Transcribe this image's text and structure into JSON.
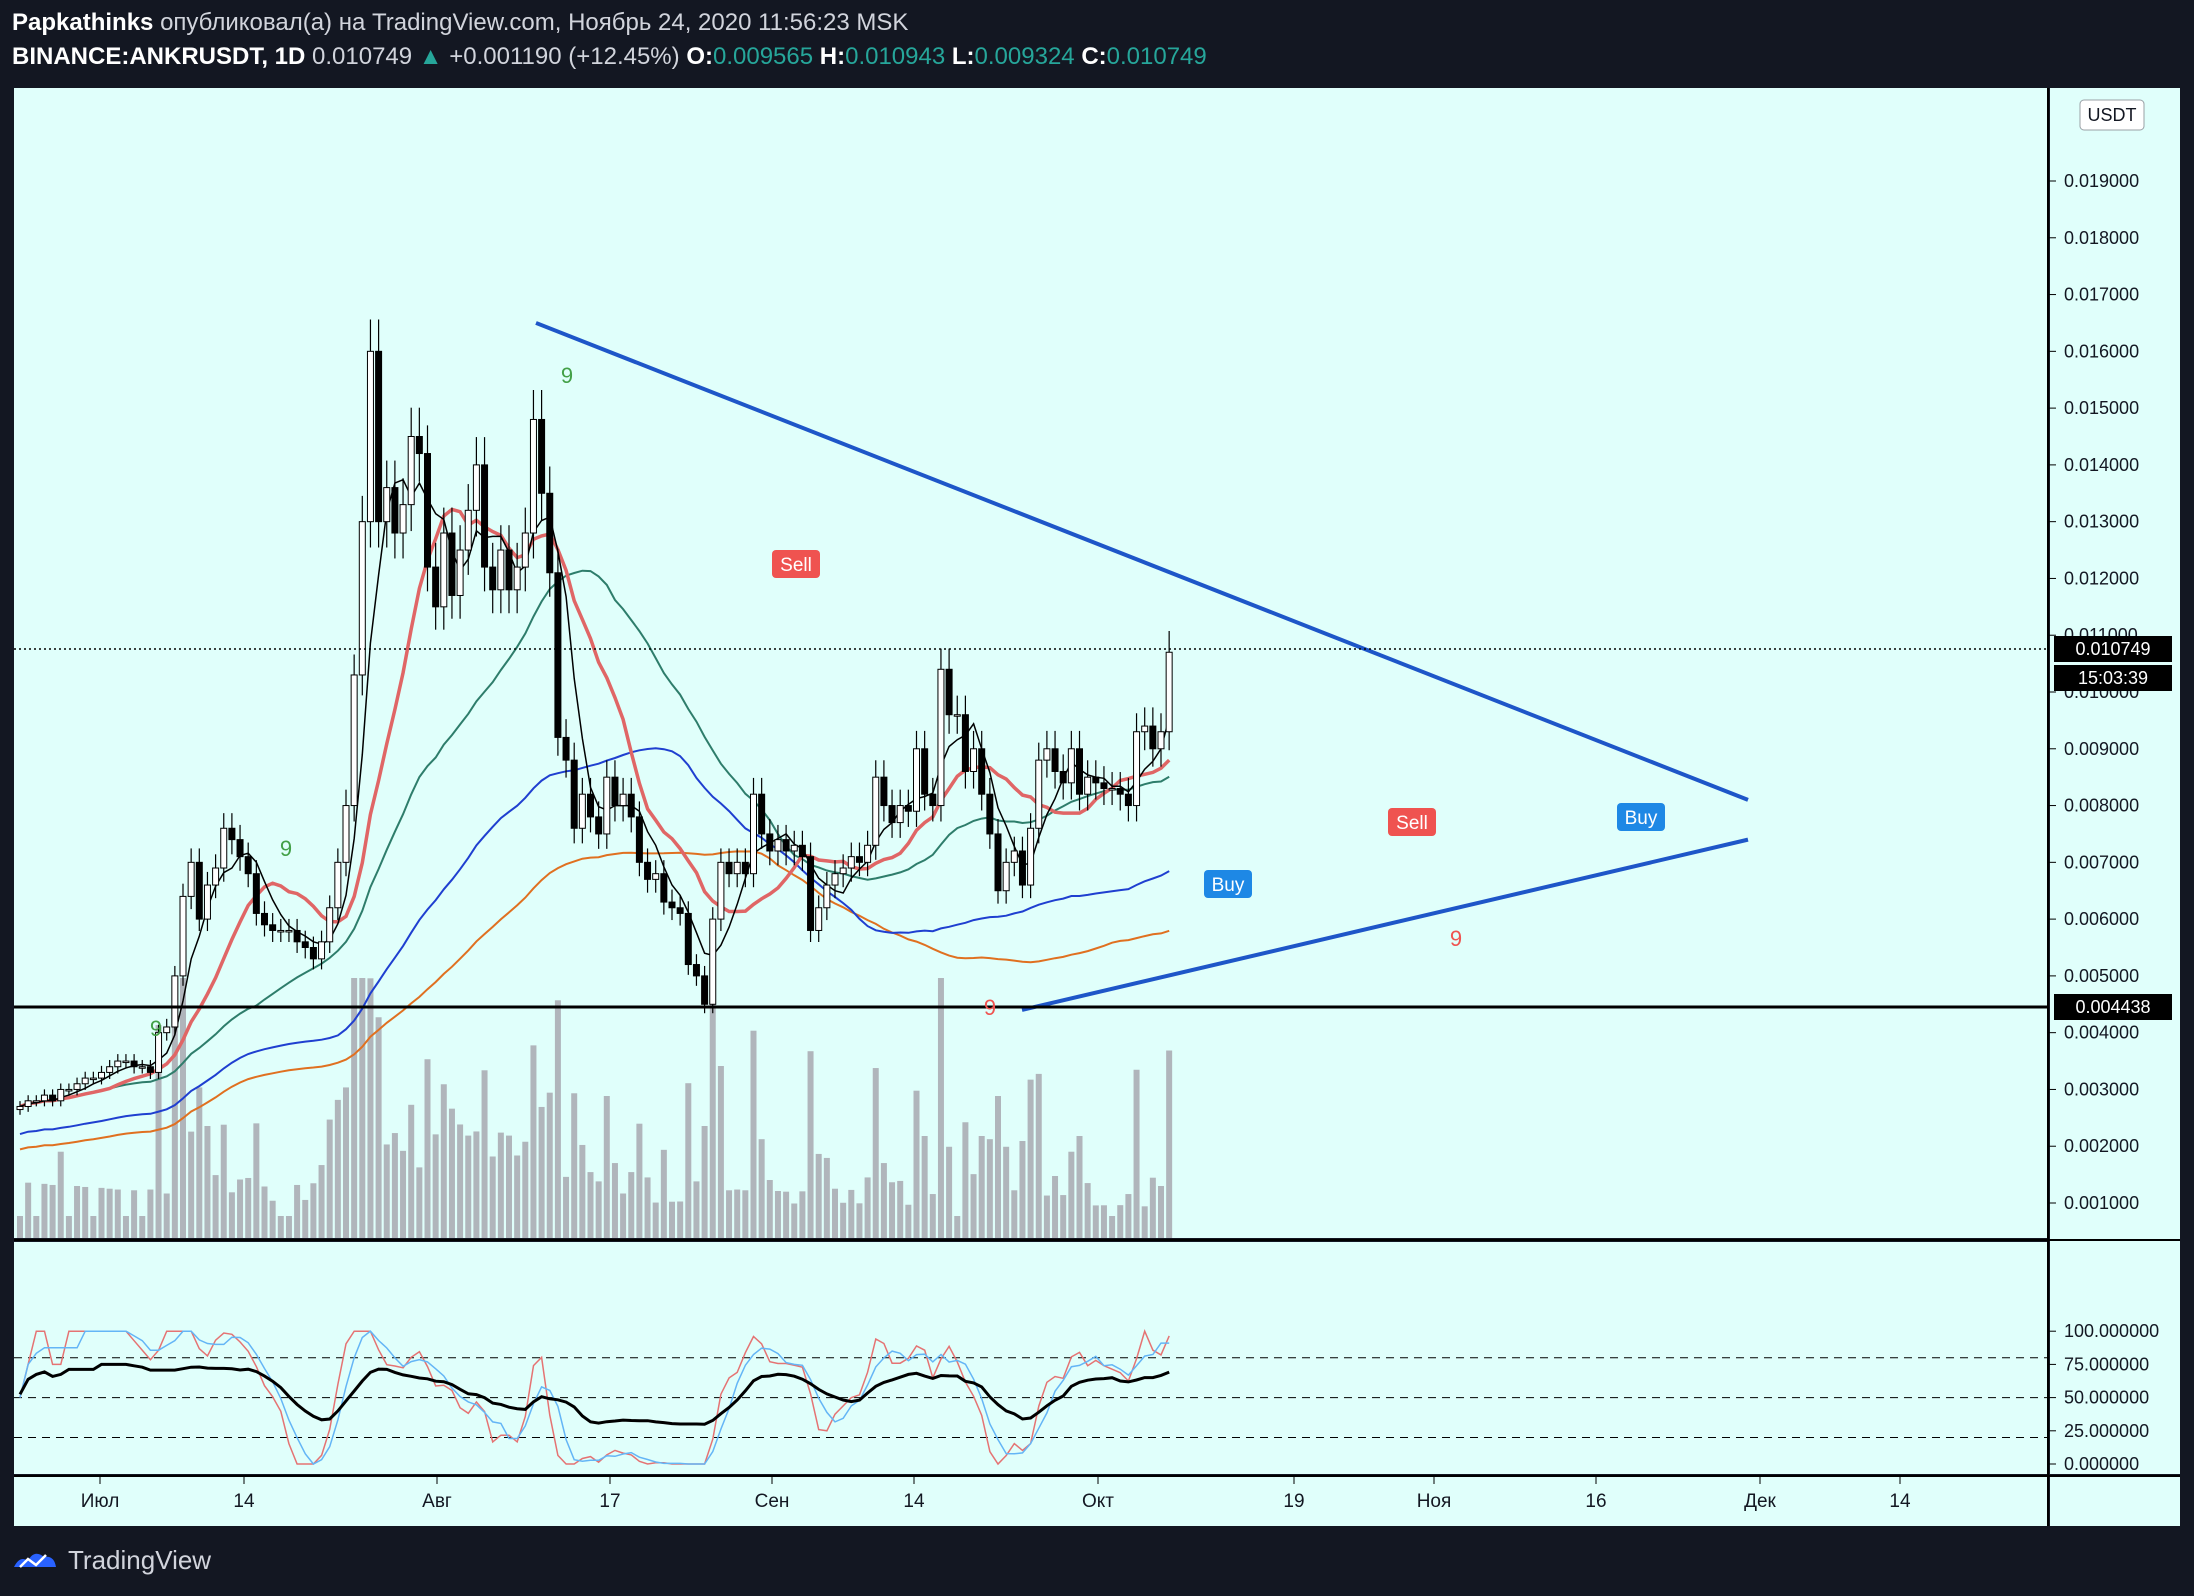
{
  "header": {
    "author": "Papkathinks",
    "published_text": "опубликовал(а) на TradingView.com, Ноябрь 24, 2020 11:56:23 MSK",
    "symbol": "BINANCE:ANKRUSDT, 1D",
    "last": "0.010749",
    "change": "+0.001190 (+12.45%)",
    "o_label": "O:",
    "o_value": "0.009565",
    "h_label": "H:",
    "h_value": "0.010943",
    "l_label": "L:",
    "l_value": "0.009324",
    "c_label": "C:",
    "c_value": "0.010749"
  },
  "currency_label": "USDT",
  "price_badges": {
    "last_price": "0.010749",
    "countdown": "15:03:39",
    "support": "0.004438"
  },
  "signals": {
    "sell1": "Sell",
    "sell2": "Sell",
    "buy1": "Buy",
    "buy2": "Buy"
  },
  "td_counts": [
    "9",
    "9",
    "9",
    "9",
    "9"
  ],
  "footer": {
    "brand": "TradingView"
  },
  "colors": {
    "background": "#131722",
    "pane": "#e0fffb",
    "bull_body": "#ffffff",
    "bear_body": "#000000",
    "trendline": "#1e56c8",
    "ema_red": "#e06666",
    "ma_black": "#000000",
    "ma_green": "#2e7d6b",
    "ma_blue": "#1f3fd0",
    "ma_orange": "#e07020",
    "volume": "#b0b5bb",
    "sell": "#ef5350",
    "buy": "#1e88e5"
  },
  "chart_data": {
    "type": "candlestick",
    "symbol": "BINANCE:ANKRUSDT",
    "interval": "1D",
    "y_axis": {
      "range": [
        0,
        0.0205
      ],
      "ticks": [
        "0.001000",
        "0.002000",
        "0.003000",
        "0.004000",
        "0.005000",
        "0.006000",
        "0.007000",
        "0.008000",
        "0.009000",
        "0.010000",
        "0.011000",
        "0.012000",
        "0.013000",
        "0.014000",
        "0.015000",
        "0.016000",
        "0.017000",
        "0.018000",
        "0.019000"
      ]
    },
    "x_axis": {
      "ticks": [
        "Июл",
        "14",
        "Авг",
        "17",
        "Сен",
        "14",
        "Окт",
        "19",
        "Ноя",
        "16",
        "Дек",
        "14"
      ]
    },
    "horizontal_levels": [
      0.010749,
      0.004438
    ],
    "trendlines": [
      {
        "name": "resistance",
        "from": [
          "2020-08-11",
          0.0165
        ],
        "to": [
          "2020-11-28",
          0.0081
        ]
      },
      {
        "name": "support",
        "from": [
          "2020-09-24",
          0.0044
        ],
        "to": [
          "2020-11-28",
          0.0074
        ]
      }
    ],
    "closes_approx": [
      0.0027,
      0.0028,
      0.0028,
      0.0029,
      0.0028,
      0.003,
      0.003,
      0.0031,
      0.0032,
      0.0032,
      0.0033,
      0.0034,
      0.0035,
      0.0035,
      0.0034,
      0.0034,
      0.0033,
      0.004,
      0.0041,
      0.005,
      0.0064,
      0.007,
      0.006,
      0.0066,
      0.0069,
      0.0076,
      0.0074,
      0.0071,
      0.0068,
      0.0061,
      0.0059,
      0.0058,
      0.0058,
      0.0058,
      0.0056,
      0.0055,
      0.0053,
      0.0056,
      0.0062,
      0.007,
      0.008,
      0.0103,
      0.013,
      0.016,
      0.013,
      0.0136,
      0.0128,
      0.0133,
      0.0145,
      0.0142,
      0.0122,
      0.0115,
      0.0128,
      0.0117,
      0.0125,
      0.0132,
      0.014,
      0.0122,
      0.0118,
      0.0125,
      0.0118,
      0.0122,
      0.0128,
      0.0148,
      0.0135,
      0.0121,
      0.0092,
      0.0088,
      0.0076,
      0.0082,
      0.0078,
      0.0075,
      0.0085,
      0.008,
      0.0082,
      0.0078,
      0.007,
      0.0067,
      0.0068,
      0.0063,
      0.0062,
      0.0061,
      0.0052,
      0.005,
      0.0045,
      0.006,
      0.007,
      0.0068,
      0.007,
      0.0068,
      0.0082,
      0.0075,
      0.0072,
      0.0074,
      0.0072,
      0.0073,
      0.0071,
      0.0058,
      0.0062,
      0.0066,
      0.0068,
      0.0069,
      0.0071,
      0.007,
      0.0073,
      0.0085,
      0.008,
      0.0077,
      0.008,
      0.0079,
      0.009,
      0.0082,
      0.008,
      0.0104,
      0.0096,
      0.0096,
      0.0086,
      0.009,
      0.0082,
      0.0075,
      0.0065,
      0.007,
      0.0072,
      0.0066,
      0.0076,
      0.0088,
      0.009,
      0.0086,
      0.0084,
      0.009,
      0.0082,
      0.0085,
      0.0084,
      0.0083,
      0.0083,
      0.0082,
      0.008,
      0.0093,
      0.0094,
      0.009,
      0.0093,
      0.0107
    ],
    "volume_ma_series": "red",
    "oscillator": {
      "range": [
        0,
        100
      ],
      "ticks": [
        "100.000000",
        "75.000000",
        "50.000000",
        "25.000000",
        "0.000000"
      ],
      "levels": [
        80,
        50,
        20
      ]
    }
  }
}
